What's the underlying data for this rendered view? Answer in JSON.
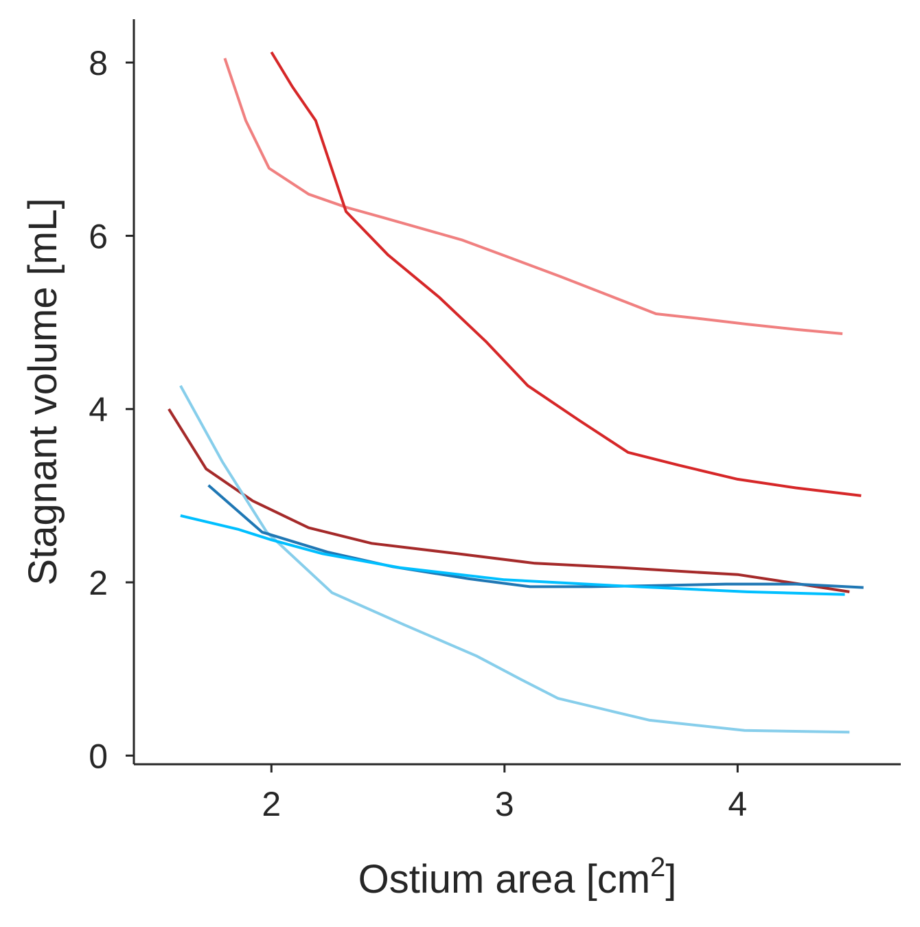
{
  "chart_data": {
    "type": "line",
    "title": "",
    "xlabel": "Ostium area [cm",
    "xlabel_superscript": "2",
    "xlabel_suffix": "]",
    "ylabel": "Stagnant volume [mL]",
    "xlim": [
      1.41,
      4.7
    ],
    "ylim": [
      -0.1,
      8.5
    ],
    "xticks": [
      2,
      3,
      4
    ],
    "xtick_labels": [
      "2",
      "3",
      "4"
    ],
    "yticks": [
      0,
      2,
      4,
      6,
      8
    ],
    "ytick_labels": [
      "0",
      "2",
      "4",
      "6",
      "8"
    ],
    "grid": false,
    "series": [
      {
        "name": "light-red",
        "color": "#f08080",
        "x": [
          1.8,
          1.89,
          1.99,
          2.16,
          2.32,
          2.48,
          2.65,
          2.82,
          3.02,
          3.24,
          3.45,
          3.65,
          3.85,
          4.04,
          4.25,
          4.45
        ],
        "y": [
          8.05,
          7.33,
          6.78,
          6.48,
          6.33,
          6.21,
          6.08,
          5.95,
          5.75,
          5.53,
          5.31,
          5.1,
          5.04,
          4.98,
          4.92,
          4.87
        ]
      },
      {
        "name": "red",
        "color": "#d62728",
        "x": [
          2.0,
          2.09,
          2.19,
          2.32,
          2.5,
          2.72,
          2.92,
          3.1,
          3.32,
          3.53,
          3.75,
          4.0,
          4.25,
          4.53
        ],
        "y": [
          8.12,
          7.72,
          7.33,
          6.28,
          5.78,
          5.29,
          4.78,
          4.27,
          3.87,
          3.5,
          3.35,
          3.19,
          3.09,
          3.0
        ]
      },
      {
        "name": "dark-red",
        "color": "#a52a2a",
        "x": [
          1.56,
          1.72,
          1.92,
          2.16,
          2.43,
          2.8,
          3.13,
          3.5,
          3.8,
          4.0,
          4.17,
          4.48
        ],
        "y": [
          4.0,
          3.31,
          2.94,
          2.63,
          2.45,
          2.33,
          2.22,
          2.17,
          2.12,
          2.09,
          2.02,
          1.89
        ]
      },
      {
        "name": "sky-blue",
        "color": "#87ceeb",
        "x": [
          1.61,
          1.79,
          1.98,
          2.26,
          2.57,
          2.88,
          3.07,
          3.23,
          3.62,
          4.03,
          4.48
        ],
        "y": [
          4.27,
          3.39,
          2.58,
          1.88,
          1.51,
          1.15,
          0.88,
          0.66,
          0.41,
          0.29,
          0.27
        ]
      },
      {
        "name": "blue",
        "color": "#1f77b4",
        "x": [
          1.73,
          1.96,
          2.24,
          2.52,
          2.85,
          3.11,
          3.37,
          3.6,
          3.95,
          4.25,
          4.54
        ],
        "y": [
          3.12,
          2.58,
          2.35,
          2.18,
          2.04,
          1.95,
          1.95,
          1.96,
          1.98,
          1.98,
          1.94
        ]
      },
      {
        "name": "deep-sky-blue",
        "color": "#00bfff",
        "x": [
          1.61,
          1.86,
          2.0,
          2.22,
          2.55,
          3.0,
          3.49,
          4.04,
          4.46
        ],
        "y": [
          2.77,
          2.61,
          2.49,
          2.33,
          2.17,
          2.03,
          1.96,
          1.89,
          1.86
        ]
      }
    ]
  }
}
